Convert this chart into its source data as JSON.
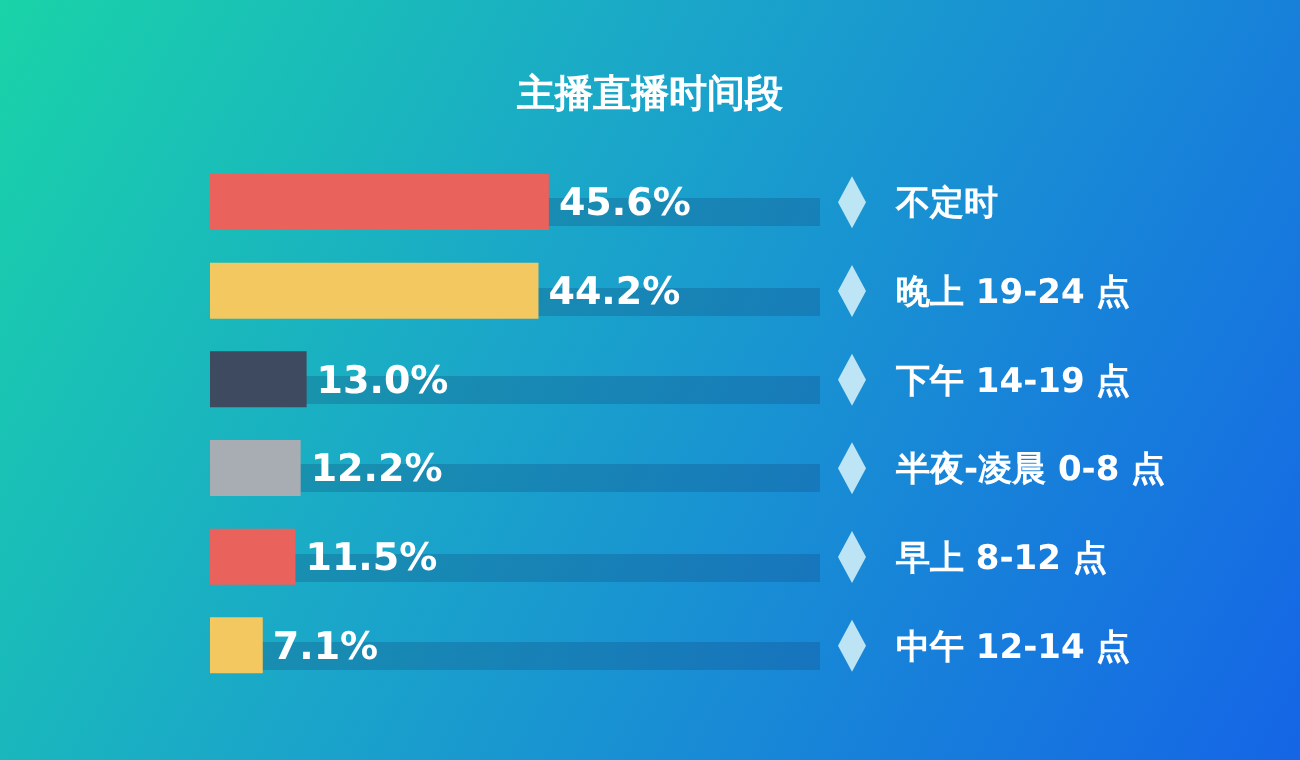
{
  "chart_data": {
    "type": "bar",
    "orientation": "horizontal",
    "title": "主播直播时间段",
    "categories": [
      "不定时",
      "晚上 19-24 点",
      "下午 14-19 点",
      "半夜-凌晨 0-8 点",
      "早上 8-12 点",
      "中午 12-14 点"
    ],
    "values": [
      45.6,
      44.2,
      13.0,
      12.2,
      11.5,
      7.1
    ],
    "value_labels": [
      "45.6%",
      "44.2%",
      "13.0%",
      "12.2%",
      "11.5%",
      "7.1%"
    ],
    "colors": [
      "#e9625c",
      "#f3c860",
      "#3e4a5f",
      "#a8adb3",
      "#e9625c",
      "#f3c860"
    ]
  }
}
